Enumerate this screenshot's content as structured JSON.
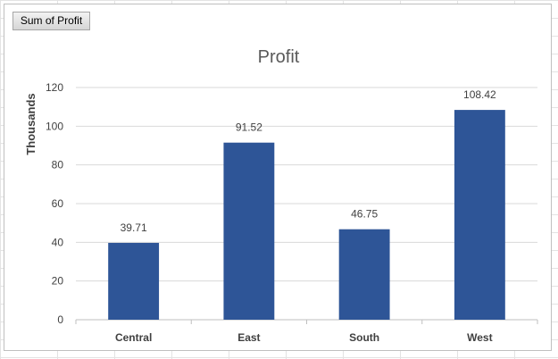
{
  "field_button": {
    "label": "Sum of Profit"
  },
  "colors": {
    "bar": "#2e5597",
    "grid": "#d9d9d9",
    "axis": "#bfbfbf",
    "title": "#595959",
    "text": "#404040"
  },
  "chart_data": {
    "type": "bar",
    "title": "Profit",
    "xlabel": "",
    "ylabel": "Thousands",
    "ylim": [
      0,
      120
    ],
    "yticks": [
      0,
      20,
      40,
      60,
      80,
      100,
      120
    ],
    "grid": true,
    "legend": "none",
    "categories": [
      "Central",
      "East",
      "South",
      "West"
    ],
    "values": [
      39.71,
      91.52,
      46.75,
      108.42
    ],
    "data_labels": [
      "39.71",
      "91.52",
      "46.75",
      "108.42"
    ]
  }
}
